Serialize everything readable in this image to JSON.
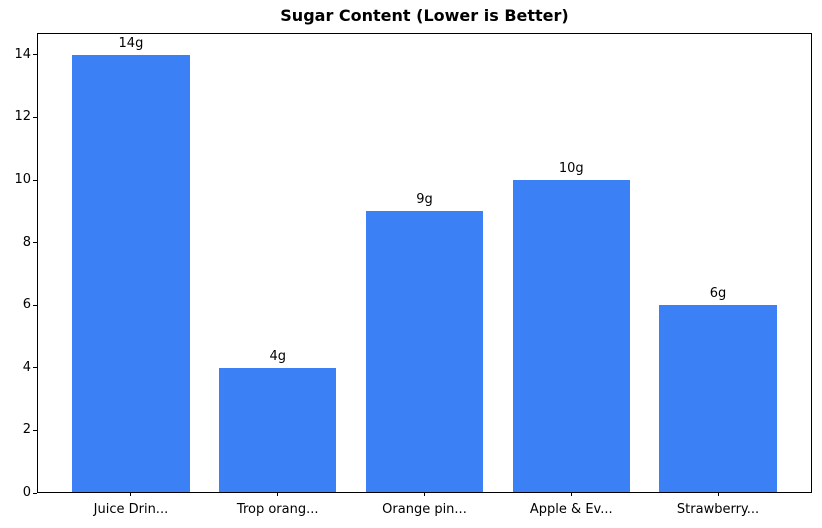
{
  "title": "Sugar Content (Lower is Better)",
  "colors": {
    "bar": "#3b80f4",
    "axis": "#000000",
    "background": "#ffffff",
    "text": "#000000"
  },
  "chart_data": {
    "type": "bar",
    "title": "Sugar Content (Lower is Better)",
    "categories": [
      "Juice Drin...",
      "Trop orang...",
      "Orange pin...",
      "Apple & Ev...",
      "Strawberry..."
    ],
    "values": [
      14,
      4,
      9,
      10,
      6
    ],
    "value_labels": [
      "14g",
      "4g",
      "9g",
      "10g",
      "6g"
    ],
    "xlabel": "",
    "ylabel": "",
    "ylim": [
      0,
      14.7
    ],
    "yticks": [
      0,
      2,
      4,
      6,
      8,
      10,
      12,
      14
    ],
    "grid": false,
    "legend": "none",
    "bar_color": "#3b80f4"
  }
}
